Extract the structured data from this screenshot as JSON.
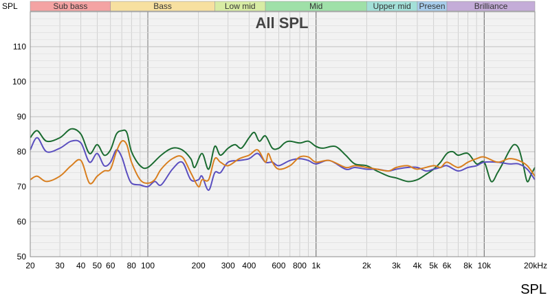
{
  "chart_data": {
    "type": "line",
    "title": "All SPL",
    "ylabel": "SPL",
    "xlabel_unit": "kHz",
    "footer": "SPL",
    "x_scale": "log",
    "xlim": [
      20,
      20000
    ],
    "ylim": [
      50,
      120
    ],
    "grid": true,
    "x_ticks": [
      {
        "value": 20,
        "label": "20"
      },
      {
        "value": 30,
        "label": "30"
      },
      {
        "value": 40,
        "label": "40"
      },
      {
        "value": 50,
        "label": "50"
      },
      {
        "value": 60,
        "label": "60"
      },
      {
        "value": 80,
        "label": "80"
      },
      {
        "value": 100,
        "label": "100"
      },
      {
        "value": 200,
        "label": "200"
      },
      {
        "value": 300,
        "label": "300"
      },
      {
        "value": 400,
        "label": "400"
      },
      {
        "value": 600,
        "label": "600"
      },
      {
        "value": 800,
        "label": "800"
      },
      {
        "value": 1000,
        "label": "1k"
      },
      {
        "value": 2000,
        "label": "2k"
      },
      {
        "value": 3000,
        "label": "3k"
      },
      {
        "value": 4000,
        "label": "4k"
      },
      {
        "value": 5000,
        "label": "5k"
      },
      {
        "value": 6000,
        "label": "6k"
      },
      {
        "value": 8000,
        "label": "8k"
      },
      {
        "value": 10000,
        "label": "10k"
      },
      {
        "value": 20000,
        "label": "20kHz"
      }
    ],
    "y_ticks": [
      {
        "value": 50,
        "label": "50"
      },
      {
        "value": 60,
        "label": "60"
      },
      {
        "value": 70,
        "label": "70"
      },
      {
        "value": 80,
        "label": "80"
      },
      {
        "value": 90,
        "label": "90"
      },
      {
        "value": 100,
        "label": "100"
      },
      {
        "value": 110,
        "label": "110"
      }
    ],
    "bands": [
      {
        "label": "Sub bass",
        "from": 20,
        "to": 60,
        "color": "#f4a3a3"
      },
      {
        "label": "Bass",
        "from": 60,
        "to": 250,
        "color": "#f7e0a0"
      },
      {
        "label": "Low mid",
        "from": 250,
        "to": 500,
        "color": "#d8eca4"
      },
      {
        "label": "Mid",
        "from": 500,
        "to": 2000,
        "color": "#9fe0a8"
      },
      {
        "label": "Upper mid",
        "from": 2000,
        "to": 4000,
        "color": "#a3e0d8"
      },
      {
        "label": "Presen",
        "from": 4000,
        "to": 6000,
        "color": "#a8cdec"
      },
      {
        "label": "Brilliance",
        "from": 6000,
        "to": 20000,
        "color": "#c4acd8"
      }
    ],
    "series": [
      {
        "color": "#1a6b30",
        "points": [
          [
            20,
            84
          ],
          [
            22,
            86
          ],
          [
            25,
            83
          ],
          [
            30,
            84
          ],
          [
            35,
            86.5
          ],
          [
            40,
            85
          ],
          [
            45,
            79.5
          ],
          [
            50,
            82
          ],
          [
            55,
            79
          ],
          [
            60,
            80.5
          ],
          [
            65,
            85
          ],
          [
            70,
            86
          ],
          [
            75,
            85.5
          ],
          [
            80,
            80
          ],
          [
            90,
            76
          ],
          [
            100,
            75.5
          ],
          [
            120,
            79
          ],
          [
            140,
            81
          ],
          [
            160,
            80.5
          ],
          [
            180,
            78
          ],
          [
            190,
            75.5
          ],
          [
            210,
            79.5
          ],
          [
            230,
            75
          ],
          [
            250,
            81.5
          ],
          [
            270,
            79
          ],
          [
            300,
            81
          ],
          [
            330,
            82
          ],
          [
            360,
            81
          ],
          [
            400,
            84
          ],
          [
            430,
            85.5
          ],
          [
            460,
            83
          ],
          [
            500,
            84.5
          ],
          [
            550,
            81
          ],
          [
            600,
            81
          ],
          [
            650,
            82.5
          ],
          [
            700,
            83
          ],
          [
            800,
            82.5
          ],
          [
            900,
            83
          ],
          [
            1000,
            81.5
          ],
          [
            1100,
            81
          ],
          [
            1300,
            81.5
          ],
          [
            1500,
            79
          ],
          [
            1700,
            76.5
          ],
          [
            2000,
            76
          ],
          [
            2300,
            74.5
          ],
          [
            2700,
            73
          ],
          [
            3000,
            72.5
          ],
          [
            3500,
            71.5
          ],
          [
            4000,
            72
          ],
          [
            4500,
            73.5
          ],
          [
            5000,
            75
          ],
          [
            5500,
            77
          ],
          [
            6000,
            79.5
          ],
          [
            6500,
            80
          ],
          [
            7000,
            79
          ],
          [
            8000,
            79.5
          ],
          [
            9000,
            76.5
          ],
          [
            10000,
            77
          ],
          [
            11000,
            71.5
          ],
          [
            12000,
            74
          ],
          [
            13000,
            77
          ],
          [
            14000,
            80
          ],
          [
            15000,
            82
          ],
          [
            16000,
            81
          ],
          [
            17000,
            76.5
          ],
          [
            18000,
            71.5
          ],
          [
            19000,
            73.5
          ],
          [
            20000,
            75.5
          ]
        ]
      },
      {
        "color": "#5a4ebf",
        "points": [
          [
            20,
            80.5
          ],
          [
            22,
            84
          ],
          [
            25,
            80
          ],
          [
            30,
            81
          ],
          [
            35,
            83
          ],
          [
            40,
            82.5
          ],
          [
            45,
            77
          ],
          [
            50,
            79.5
          ],
          [
            55,
            76
          ],
          [
            60,
            77
          ],
          [
            65,
            80.5
          ],
          [
            70,
            78.5
          ],
          [
            75,
            74
          ],
          [
            80,
            71
          ],
          [
            90,
            70.5
          ],
          [
            100,
            70
          ],
          [
            110,
            71.5
          ],
          [
            120,
            70.5
          ],
          [
            140,
            75
          ],
          [
            160,
            77
          ],
          [
            180,
            72
          ],
          [
            200,
            72
          ],
          [
            210,
            73
          ],
          [
            230,
            69
          ],
          [
            250,
            74
          ],
          [
            270,
            74
          ],
          [
            300,
            77
          ],
          [
            350,
            77.5
          ],
          [
            400,
            78
          ],
          [
            450,
            79.5
          ],
          [
            500,
            77
          ],
          [
            550,
            77
          ],
          [
            600,
            76
          ],
          [
            700,
            77.5
          ],
          [
            800,
            78
          ],
          [
            900,
            77.5
          ],
          [
            1000,
            76.5
          ],
          [
            1200,
            77.5
          ],
          [
            1500,
            75
          ],
          [
            1700,
            75.5
          ],
          [
            2000,
            75
          ],
          [
            2300,
            75
          ],
          [
            2700,
            74.5
          ],
          [
            3000,
            75
          ],
          [
            3500,
            75.5
          ],
          [
            4000,
            75.5
          ],
          [
            4500,
            74.5
          ],
          [
            5000,
            75
          ],
          [
            5500,
            75.5
          ],
          [
            6000,
            76
          ],
          [
            7000,
            74.5
          ],
          [
            8000,
            75.5
          ],
          [
            9000,
            76
          ],
          [
            10000,
            77
          ],
          [
            12000,
            77
          ],
          [
            14000,
            76.5
          ],
          [
            16000,
            76.5
          ],
          [
            18000,
            75
          ],
          [
            20000,
            72
          ]
        ]
      },
      {
        "color": "#d87e1e",
        "points": [
          [
            20,
            72
          ],
          [
            22,
            73
          ],
          [
            25,
            71.5
          ],
          [
            30,
            73
          ],
          [
            35,
            76
          ],
          [
            40,
            77.5
          ],
          [
            45,
            71
          ],
          [
            50,
            73
          ],
          [
            55,
            74.5
          ],
          [
            60,
            75
          ],
          [
            65,
            80
          ],
          [
            70,
            83
          ],
          [
            75,
            82
          ],
          [
            80,
            77
          ],
          [
            90,
            72
          ],
          [
            100,
            71
          ],
          [
            110,
            72
          ],
          [
            120,
            75
          ],
          [
            140,
            78
          ],
          [
            160,
            78.5
          ],
          [
            180,
            74
          ],
          [
            200,
            70
          ],
          [
            210,
            72
          ],
          [
            230,
            72
          ],
          [
            250,
            78
          ],
          [
            270,
            77
          ],
          [
            300,
            76
          ],
          [
            350,
            78
          ],
          [
            400,
            79
          ],
          [
            450,
            80.5
          ],
          [
            500,
            77
          ],
          [
            520,
            79.5
          ],
          [
            550,
            77
          ],
          [
            600,
            75
          ],
          [
            700,
            76
          ],
          [
            800,
            78.5
          ],
          [
            900,
            78.5
          ],
          [
            1000,
            77
          ],
          [
            1200,
            77.5
          ],
          [
            1500,
            75.5
          ],
          [
            1700,
            76
          ],
          [
            2000,
            75.5
          ],
          [
            2300,
            75
          ],
          [
            2700,
            74.5
          ],
          [
            3000,
            75.5
          ],
          [
            3500,
            76
          ],
          [
            4000,
            75
          ],
          [
            5000,
            76
          ],
          [
            5500,
            75.5
          ],
          [
            6000,
            77
          ],
          [
            7000,
            75.5
          ],
          [
            8000,
            77
          ],
          [
            9000,
            78
          ],
          [
            10000,
            78.5
          ],
          [
            12000,
            77
          ],
          [
            14000,
            78
          ],
          [
            16000,
            77.5
          ],
          [
            18000,
            76
          ],
          [
            20000,
            73
          ]
        ]
      }
    ]
  }
}
